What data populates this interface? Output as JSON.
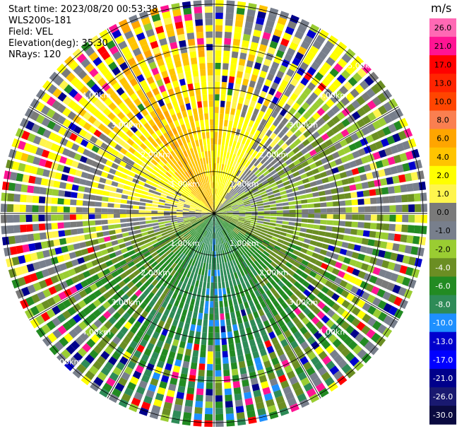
{
  "header": {
    "start_time": "Start time: 2023/08/20 00:53:38",
    "instrument": "WLS200s-181",
    "field": "Field: VEL",
    "elevation": "Elevation(deg): 35.30",
    "nrays": "NRays: 120"
  },
  "chart_data": {
    "type": "ppi-polar",
    "field": "VEL",
    "units": "m/s",
    "n_rays": 120,
    "elevation_deg": 35.3,
    "range_rings_km": [
      1,
      2,
      3,
      4,
      5
    ],
    "range_ring_labels": [
      "1.00km",
      "2.00km",
      "3.00km",
      "4.00km",
      "5.00km"
    ],
    "max_range_km": 5.1,
    "colorbar": {
      "title": "m/s",
      "tick_labels": [
        "26.0",
        "21.0",
        "17.0",
        "13.0",
        "10.0",
        "8.0",
        "6.0",
        "4.0",
        "2.0",
        "1.0",
        "0.0",
        "-1.0",
        "-2.0",
        "-4.0",
        "-6.0",
        "-8.0",
        "-10.0",
        "-13.0",
        "-17.0",
        "-21.0",
        "-26.0",
        "-30.0"
      ],
      "colors": [
        "#ff69b4",
        "#ff1493",
        "#ff0000",
        "#ff2400",
        "#ff4500",
        "#fa7f50",
        "#ffa500",
        "#ffc400",
        "#ffff00",
        "#fff54d",
        "#7a7a7a",
        "#787f8c",
        "#9acd32",
        "#6b8e23",
        "#228b22",
        "#2e8b57",
        "#1e90ff",
        "#0000cd",
        "#0000ff",
        "#00008b",
        "#191970",
        "#0a0a40"
      ]
    },
    "sectors": [
      {
        "azimuth_deg": 0,
        "velocity": 4.0
      },
      {
        "azimuth_deg": 30,
        "velocity": 2.0
      },
      {
        "azimuth_deg": 60,
        "velocity": -2.0
      },
      {
        "azimuth_deg": 90,
        "velocity": -1.0
      },
      {
        "azimuth_deg": 120,
        "velocity": -4.0
      },
      {
        "azimuth_deg": 150,
        "velocity": -6.0
      },
      {
        "azimuth_deg": 180,
        "velocity": -8.0
      },
      {
        "azimuth_deg": 210,
        "velocity": -6.0
      },
      {
        "azimuth_deg": 240,
        "velocity": -4.0
      },
      {
        "azimuth_deg": 270,
        "velocity": 1.0
      },
      {
        "azimuth_deg": 300,
        "velocity": 2.0
      },
      {
        "azimuth_deg": 330,
        "velocity": 6.0
      }
    ]
  }
}
